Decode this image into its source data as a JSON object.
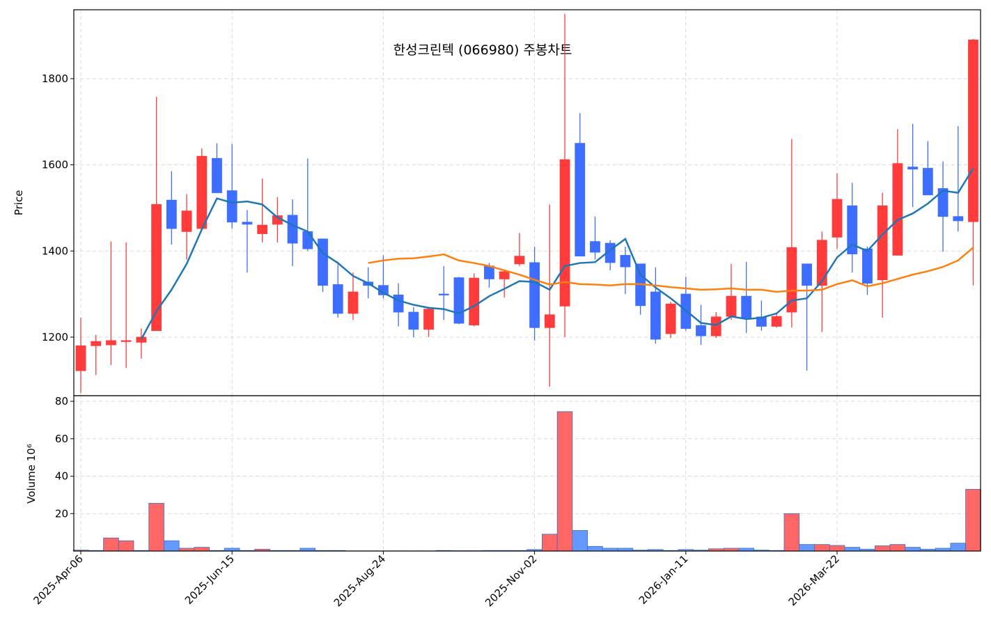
{
  "chart_data": {
    "type": "candlestick",
    "title": "한성크린텍 (066980) 주봉차트",
    "ylabel": "Price",
    "volume_ylabel": "Volume 10⁶",
    "categories": [
      "2025-Apr-06",
      null,
      null,
      null,
      null,
      null,
      null,
      null,
      null,
      null,
      "2025-Jun-15",
      null,
      null,
      null,
      null,
      null,
      null,
      null,
      null,
      null,
      "2025-Aug-24",
      null,
      null,
      null,
      null,
      null,
      null,
      null,
      null,
      null,
      "2025-Nov-02",
      null,
      null,
      null,
      null,
      null,
      null,
      null,
      null,
      null,
      "2026-Jan-11",
      null,
      null,
      null,
      null,
      null,
      null,
      null,
      null,
      null,
      "2026-Mar-22",
      null,
      null,
      null,
      null,
      null,
      null,
      null,
      null,
      null
    ],
    "open": [
      1122,
      1180,
      1182,
      1190,
      1188,
      1215,
      1518,
      1445,
      1452,
      1615,
      1540,
      1467,
      1440,
      1462,
      1483,
      1445,
      1428,
      1322,
      1255,
      1328,
      1320,
      1298,
      1258,
      1218,
      1300,
      1338,
      1228,
      1365,
      1335,
      1370,
      1373,
      1222,
      1272,
      1650,
      1422,
      1418,
      1390,
      1370,
      1305,
      1208,
      1300,
      1227,
      1203,
      1248,
      1295,
      1247,
      1225,
      1258,
      1370,
      1320,
      1432,
      1505,
      1405,
      1333,
      1390,
      1595,
      1592,
      1545,
      1480,
      1468
    ],
    "high": [
      1245,
      1205,
      1422,
      1420,
      1220,
      1758,
      1585,
      1532,
      1638,
      1650,
      1648,
      1495,
      1568,
      1525,
      1520,
      1615,
      1428,
      1375,
      1350,
      1362,
      1390,
      1325,
      1270,
      1270,
      1365,
      1340,
      1348,
      1372,
      1355,
      1442,
      1410,
      1508,
      1950,
      1720,
      1480,
      1425,
      1410,
      1370,
      1362,
      1282,
      1340,
      1275,
      1258,
      1370,
      1375,
      1285,
      1255,
      1660,
      1370,
      1445,
      1580,
      1558,
      1410,
      1535,
      1683,
      1695,
      1655,
      1608,
      1690,
      1892
    ],
    "low": [
      1070,
      1112,
      1135,
      1128,
      1150,
      1215,
      1415,
      1380,
      1450,
      1535,
      1452,
      1350,
      1420,
      1420,
      1365,
      1400,
      1305,
      1245,
      1240,
      1290,
      1290,
      1225,
      1200,
      1200,
      1240,
      1230,
      1225,
      1315,
      1292,
      1365,
      1192,
      1085,
      1200,
      1388,
      1380,
      1355,
      1300,
      1252,
      1185,
      1198,
      1215,
      1182,
      1198,
      1240,
      1210,
      1215,
      1222,
      1222,
      1122,
      1212,
      1405,
      1350,
      1298,
      1245,
      1390,
      1502,
      1530,
      1398,
      1445,
      1320
    ],
    "close": [
      1180,
      1190,
      1192,
      1192,
      1200,
      1508,
      1452,
      1493,
      1620,
      1535,
      1467,
      1462,
      1460,
      1482,
      1418,
      1405,
      1320,
      1255,
      1305,
      1320,
      1298,
      1258,
      1218,
      1265,
      1298,
      1232,
      1337,
      1335,
      1352,
      1388,
      1222,
      1252,
      1612,
      1388,
      1397,
      1373,
      1363,
      1273,
      1195,
      1277,
      1220,
      1203,
      1247,
      1295,
      1245,
      1225,
      1248,
      1408,
      1320,
      1425,
      1520,
      1393,
      1325,
      1505,
      1603,
      1590,
      1530,
      1480,
      1470,
      1890
    ],
    "up_color": "#ff3b3b",
    "down_color": "#3d6eff",
    "ma_series": [
      {
        "color": "#1f77b4",
        "values": [
          null,
          null,
          null,
          null,
          1195,
          1260,
          1310,
          1370,
          1450,
          1522,
          1512,
          1515,
          1508,
          1478,
          1460,
          1445,
          1395,
          1372,
          1342,
          1325,
          1303,
          1285,
          1275,
          1268,
          1265,
          1255,
          1272,
          1295,
          1312,
          1330,
          1328,
          1310,
          1365,
          1372,
          1374,
          1402,
          1428,
          1345,
          1315,
          1290,
          1262,
          1233,
          1228,
          1248,
          1242,
          1245,
          1255,
          1285,
          1290,
          1330,
          1385,
          1415,
          1400,
          1438,
          1472,
          1487,
          1510,
          1540,
          1535,
          1592
        ]
      },
      {
        "color": "#ff7f0e",
        "values": [
          null,
          null,
          null,
          null,
          null,
          null,
          null,
          null,
          null,
          null,
          null,
          null,
          null,
          null,
          null,
          null,
          null,
          null,
          null,
          1372,
          1378,
          1382,
          1383,
          1387,
          1392,
          1378,
          1372,
          1365,
          1355,
          1345,
          1333,
          1322,
          1328,
          1323,
          1322,
          1320,
          1323,
          1323,
          1320,
          1316,
          1313,
          1310,
          1311,
          1313,
          1310,
          1310,
          1305,
          1308,
          1308,
          1310,
          1323,
          1332,
          1318,
          1325,
          1335,
          1345,
          1353,
          1363,
          1378,
          1408
        ]
      }
    ],
    "volume": [
      0.5,
      0.3,
      7,
      5.5,
      0.3,
      25.5,
      5.5,
      1.5,
      2,
      0.3,
      1.5,
      0.3,
      1,
      0.3,
      0.3,
      1.5,
      0.3,
      0.3,
      0.1,
      0.1,
      0.1,
      0.1,
      0.1,
      0.1,
      0.3,
      0.2,
      0.2,
      0.3,
      0.3,
      0.3,
      0.8,
      9,
      74.5,
      11,
      2.5,
      1.5,
      1.5,
      0.5,
      0.8,
      0.3,
      0.8,
      0.5,
      1.2,
      1.5,
      1.5,
      0.5,
      0.3,
      20,
      3.5,
      3.5,
      3,
      2,
      1,
      2.8,
      3.5,
      2,
      1,
      1.5,
      4.2,
      33
    ],
    "volume_up_color": "#ff6666",
    "volume_down_color": "#6699ff",
    "ylim": [
      1064,
      1960
    ],
    "yticks": [
      1200,
      1400,
      1600,
      1800
    ],
    "volume_ylim": [
      0,
      83
    ],
    "volume_yticks": [
      20,
      40,
      60,
      80
    ],
    "grid": true
  }
}
